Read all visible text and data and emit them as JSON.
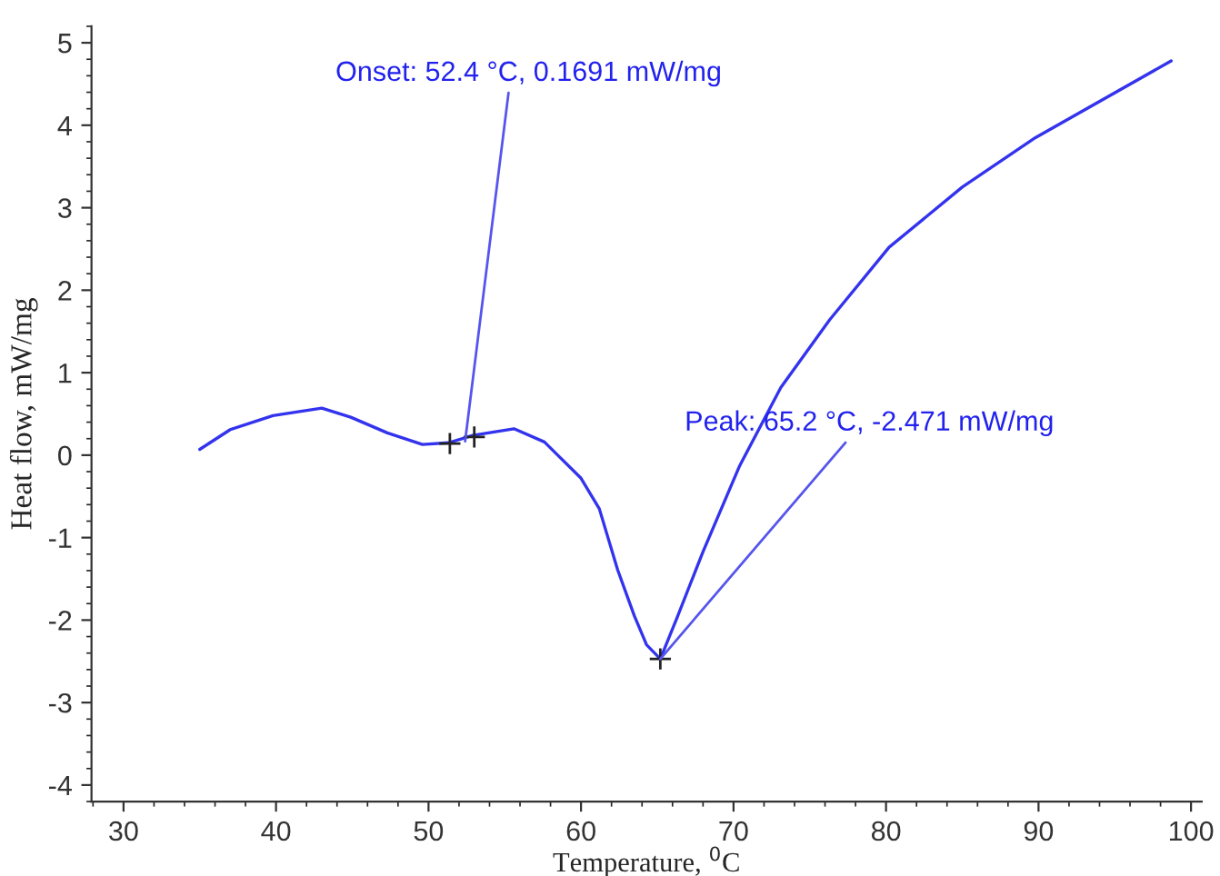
{
  "chart_data": {
    "type": "line",
    "xlabel": "Temperature, $^{0}$C",
    "ylabel": "Heat flow, mW/mg",
    "xlim": [
      27.9,
      100.7
    ],
    "ylim": [
      -4.2,
      5.2
    ],
    "xticks": [
      30,
      40,
      50,
      60,
      70,
      80,
      90,
      100
    ],
    "yticks": [
      -4,
      -3,
      -2,
      -1,
      0,
      1,
      2,
      3,
      4,
      5
    ],
    "grid": false,
    "legend": false,
    "line_style": "solid",
    "marker": "none",
    "series": [
      {
        "color": "#3333ee",
        "x": [
          35,
          37,
          39.8,
          43,
          44.9,
          47.3,
          49.6,
          51.3,
          52.9,
          55.6,
          57.6,
          60,
          61.2,
          62.4,
          63.5,
          64.3,
          65.2,
          66.3,
          68,
          70.4,
          73.1,
          76.3,
          80.2,
          85,
          89.8,
          98.7
        ],
        "values": [
          0.07,
          0.31,
          0.48,
          0.57,
          0.46,
          0.27,
          0.13,
          0.15,
          0.24,
          0.32,
          0.16,
          -0.28,
          -0.65,
          -1.39,
          -1.95,
          -2.3,
          -2.47,
          -1.97,
          -1.17,
          -0.13,
          0.82,
          1.64,
          2.52,
          3.25,
          3.85,
          4.78
        ]
      },
      {
        "type": "scatter",
        "color": "#222222",
        "marker": "cross",
        "x": [
          51.4,
          53,
          65.2
        ],
        "values": [
          0.14,
          0.22,
          -2.47
        ]
      }
    ],
    "annotations": [
      {
        "text": "Onset: 52.4 °C, 0.1691 mW/mg",
        "x": 52.4,
        "y": 0.1691
      },
      {
        "text": "Peak: 65.2 °C, -2.471 mW/mg",
        "x": 65.2,
        "y": -2.471
      }
    ]
  }
}
